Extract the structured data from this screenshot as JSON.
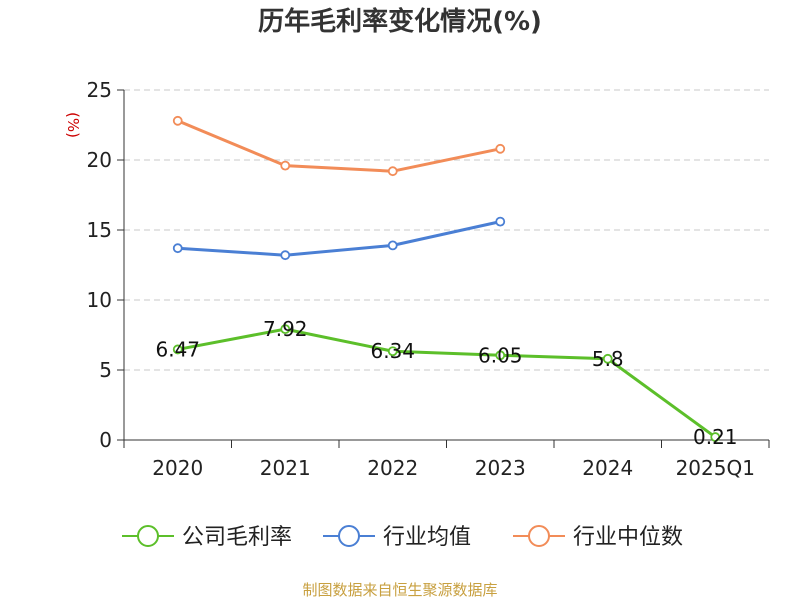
{
  "chart_data": {
    "type": "line",
    "title": "历年毛利率变化情况(%)",
    "ylabel": "(%)",
    "xlabel": "",
    "categories": [
      "2020",
      "2021",
      "2022",
      "2023",
      "2024",
      "2025Q1"
    ],
    "ylim": [
      0,
      25
    ],
    "yticks": [
      0,
      5,
      10,
      15,
      20,
      25
    ],
    "grid": true,
    "legend_position": "bottom",
    "series": [
      {
        "name": "公司毛利率",
        "color": "#5cbf2a",
        "values": [
          6.47,
          7.92,
          6.34,
          6.05,
          5.8,
          0.21
        ],
        "labels": [
          "6.47",
          "7.92",
          "6.34",
          "6.05",
          "5.8",
          "0.21"
        ]
      },
      {
        "name": "行业均值",
        "color": "#4a7fd4",
        "values": [
          13.7,
          13.2,
          13.9,
          15.6,
          null,
          null
        ]
      },
      {
        "name": "行业中位数",
        "color": "#f28c58",
        "values": [
          22.8,
          19.6,
          19.2,
          20.8,
          null,
          null
        ]
      }
    ]
  },
  "source": "制图数据来自恒生聚源数据库"
}
